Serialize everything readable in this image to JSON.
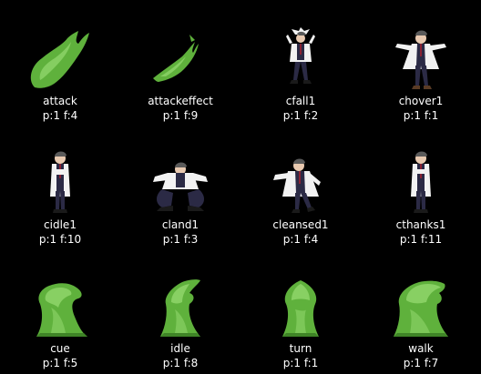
{
  "sprites": [
    {
      "name": "attack",
      "meta": "p:1 f:4",
      "icon": "slime-attack-icon"
    },
    {
      "name": "attackeffect",
      "meta": "p:1 f:9",
      "icon": "slime-shard-icon"
    },
    {
      "name": "cfall1",
      "meta": "p:1 f:2",
      "icon": "scientist-fall-icon"
    },
    {
      "name": "chover1",
      "meta": "p:1 f:1",
      "icon": "scientist-hover-icon"
    },
    {
      "name": "cidle1",
      "meta": "p:1 f:10",
      "icon": "scientist-idle-icon"
    },
    {
      "name": "cland1",
      "meta": "p:1 f:3",
      "icon": "scientist-land-icon"
    },
    {
      "name": "cleansed1",
      "meta": "p:1 f:4",
      "icon": "scientist-cleansed-icon"
    },
    {
      "name": "cthanks1",
      "meta": "p:1 f:11",
      "icon": "scientist-thanks-icon"
    },
    {
      "name": "cue",
      "meta": "p:1 f:5",
      "icon": "slime-cue-icon"
    },
    {
      "name": "idle",
      "meta": "p:1 f:8",
      "icon": "slime-idle-icon"
    },
    {
      "name": "turn",
      "meta": "p:1 f:1",
      "icon": "slime-turn-icon"
    },
    {
      "name": "walk",
      "meta": "p:1 f:7",
      "icon": "slime-walk-icon"
    }
  ],
  "colors": {
    "background": "#000000",
    "text": "#ffffff",
    "slime_light": "#8fd66a",
    "slime_mid": "#5fb13c",
    "slime_dark": "#3f8427",
    "coat": "#f2f2f2",
    "suit": "#2b2a45",
    "tie": "#8a2233",
    "hair": "#5a5a5a"
  }
}
